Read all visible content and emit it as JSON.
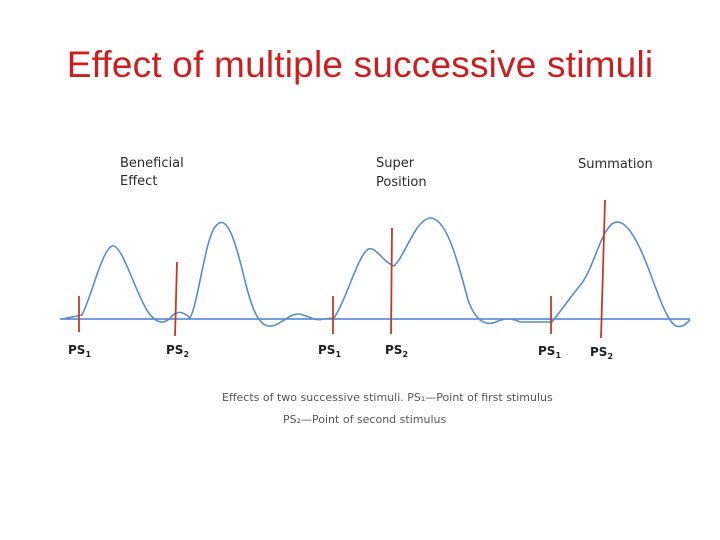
{
  "title": "Effect of  multiple successive stimuli",
  "figure": {
    "phase_labels": [
      {
        "line1": "Beneficial",
        "line2": "Effect"
      },
      {
        "line1": "Super",
        "line2": "Position"
      },
      {
        "line1": "Summation",
        "line2": ""
      }
    ],
    "stimulus_labels": [
      {
        "main": "PS",
        "sub": "1"
      },
      {
        "main": "PS",
        "sub": "2"
      },
      {
        "main": "PS",
        "sub": "1"
      },
      {
        "main": "PS",
        "sub": "2"
      },
      {
        "main": "PS",
        "sub": "1"
      },
      {
        "main": "PS",
        "sub": "2"
      }
    ],
    "caption_line1": "Effects of two successive stimuli. PS₁—Point of first stimulus",
    "caption_line2": "PS₂—Point of second stimulus",
    "colors": {
      "title": "#cc1e1e",
      "curve": "#5a8cc8",
      "baseline": "#4a7fd0",
      "stimulus_marker": "#c43a2a"
    }
  }
}
